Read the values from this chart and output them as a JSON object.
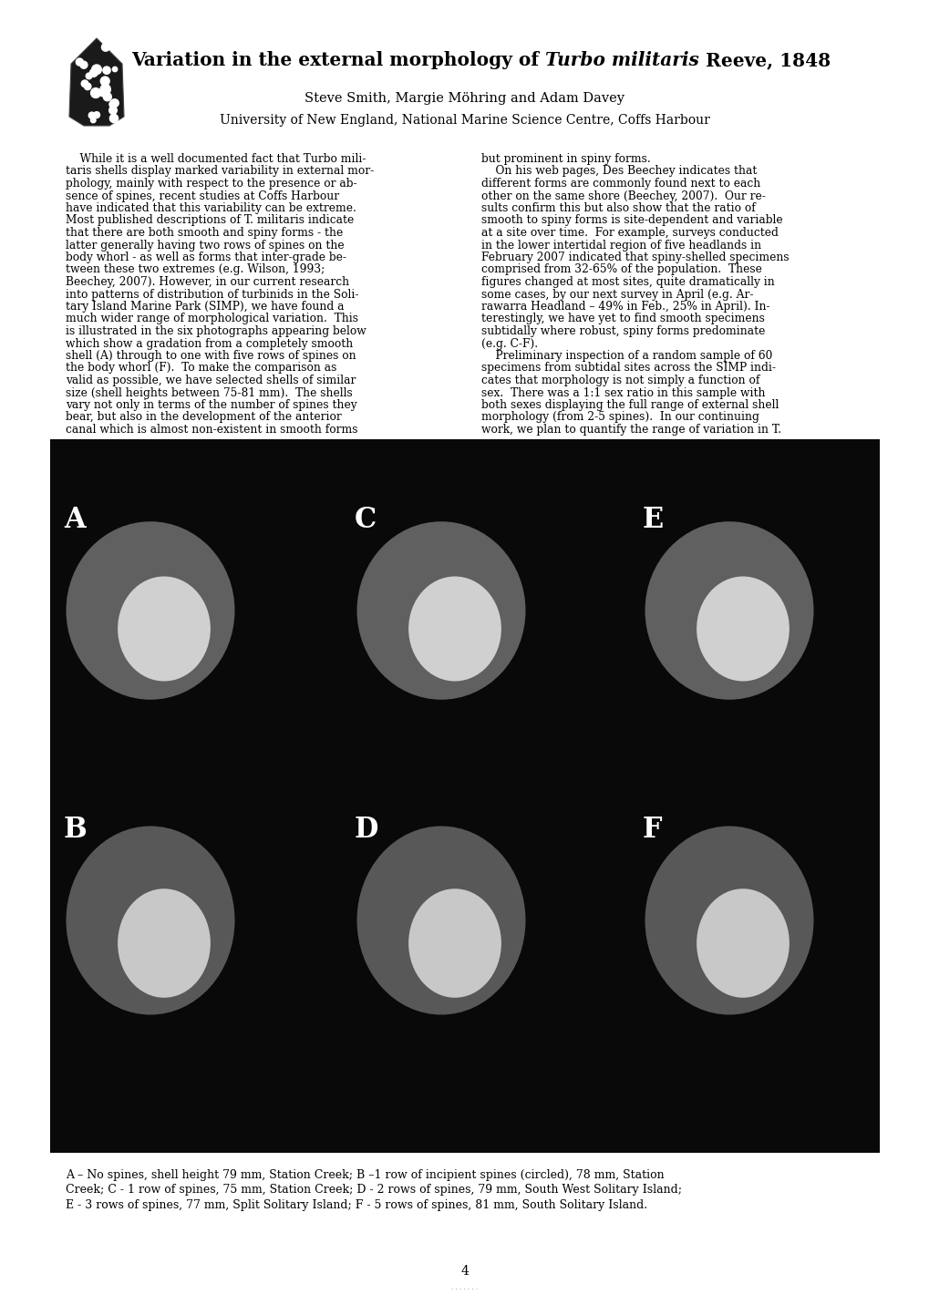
{
  "title_normal1": "Variation in the external morphology of ",
  "title_italic": "Turbo militaris",
  "title_normal2": " Reeve, 1848",
  "author_line": "Steve Smith, Margie Möhring and Adam Davey",
  "institution_line": "University of New England, National Marine Science Centre, Coffs Harbour",
  "caption_line1": "A – No spines, shell height 79 mm, Station Creek; B –1 row of incipient spines (circled), 78 mm, Station",
  "caption_line2": "Creek; C - 1 row of spines, 75 mm, Station Creek; D - 2 rows of spines, 79 mm, South West Solitary Island;",
  "caption_line3": "E - 3 rows of spines, 77 mm, Split Solitary Island; F - 5 rows of spines, 81 mm, South Solitary Island.",
  "page_number": "4",
  "bg_color": "#ffffff",
  "text_color": "#000000",
  "body_fontsize": 8.8,
  "caption_fontsize": 9.0,
  "title_fontsize": 14.5,
  "author_fontsize": 10.5,
  "institution_fontsize": 10.0,
  "col1_lines": [
    "    While it is a well documented fact that Turbo mili-",
    "taris shells display marked variability in external mor-",
    "phology, mainly with respect to the presence or ab-",
    "sence of spines, recent studies at Coffs Harbour",
    "have indicated that this variability can be extreme.",
    "Most published descriptions of T. militaris indicate",
    "that there are both smooth and spiny forms - the",
    "latter generally having two rows of spines on the",
    "body whorl - as well as forms that inter-grade be-",
    "tween these two extremes (e.g. Wilson, 1993;",
    "Beechey, 2007). However, in our current research",
    "into patterns of distribution of turbinids in the Soli-",
    "tary Island Marine Park (SIMP), we have found a",
    "much wider range of morphological variation.  This",
    "is illustrated in the six photographs appearing below",
    "which show a gradation from a completely smooth",
    "shell (A) through to one with five rows of spines on",
    "the body whorl (F).  To make the comparison as",
    "valid as possible, we have selected shells of similar",
    "size (shell heights between 75-81 mm).  The shells",
    "vary not only in terms of the number of spines they",
    "bear, but also in the development of the anterior",
    "canal which is almost non-existent in smooth forms"
  ],
  "col2_lines": [
    "but prominent in spiny forms.",
    "    On his web pages, Des Beechey indicates that",
    "different forms are commonly found next to each",
    "other on the same shore (Beechey, 2007).  Our re-",
    "sults confirm this but also show that the ratio of",
    "smooth to spiny forms is site-dependent and variable",
    "at a site over time.  For example, surveys conducted",
    "in the lower intertidal region of five headlands in",
    "February 2007 indicated that spiny-shelled specimens",
    "comprised from 32-65% of the population.  These",
    "figures changed at most sites, quite dramatically in",
    "some cases, by our next survey in April (e.g. Ar-",
    "rawarra Headland – 49% in Feb., 25% in April). In-",
    "terestingly, we have yet to find smooth specimens",
    "subtidally where robust, spiny forms predominate",
    "(e.g. C-F).",
    "    Preliminary inspection of a random sample of 60",
    "specimens from subtidal sites across the SIMP indi-",
    "cates that morphology is not simply a function of",
    "sex.  There was a 1:1 sex ratio in this sample with",
    "both sexes displaying the full range of external shell",
    "morphology (from 2-5 spines).  In our continuing",
    "work, we plan to quantify the range of variation in T."
  ]
}
